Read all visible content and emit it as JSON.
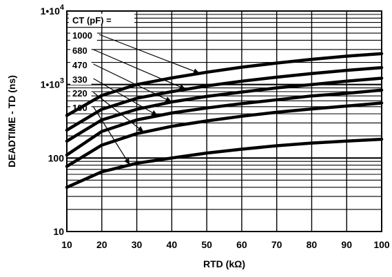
{
  "chart_data": {
    "type": "line",
    "xlabel": "RTD (kΩ)",
    "ylabel": "DEADTIME - TD (ns)",
    "xlim": [
      10,
      100
    ],
    "ylim": [
      10,
      10000
    ],
    "y_scale": "log",
    "grid": true,
    "x_ticks": [
      10,
      20,
      30,
      40,
      50,
      60,
      70,
      80,
      90,
      100
    ],
    "y_ticks": [
      {
        "value": 10,
        "label": "10"
      },
      {
        "value": 100,
        "label": "100"
      },
      {
        "value": 1000,
        "label": "1•10",
        "exponent": "3"
      },
      {
        "value": 10000,
        "label": "1•10",
        "exponent": "4"
      }
    ],
    "legend_title": "CT (pF) =",
    "legend_position": "top-left",
    "x": [
      10,
      20,
      30,
      40,
      50,
      60,
      70,
      80,
      90,
      100
    ],
    "series": [
      {
        "name": "1000",
        "values": [
          380,
          710,
          1000,
          1230,
          1470,
          1720,
          1960,
          2200,
          2430,
          2630
        ]
      },
      {
        "name": "680",
        "values": [
          240,
          460,
          650,
          800,
          960,
          1110,
          1260,
          1410,
          1560,
          1700
        ]
      },
      {
        "name": "470",
        "values": [
          170,
          330,
          460,
          580,
          690,
          790,
          900,
          1000,
          1110,
          1220
        ]
      },
      {
        "name": "330",
        "values": [
          110,
          230,
          330,
          410,
          480,
          550,
          620,
          700,
          760,
          840
        ]
      },
      {
        "name": "220",
        "values": [
          77,
          150,
          215,
          270,
          320,
          370,
          420,
          465,
          510,
          560
        ]
      },
      {
        "name": "100",
        "values": [
          40,
          65,
          85,
          100,
          117,
          132,
          147,
          160,
          170,
          180
        ]
      }
    ]
  }
}
